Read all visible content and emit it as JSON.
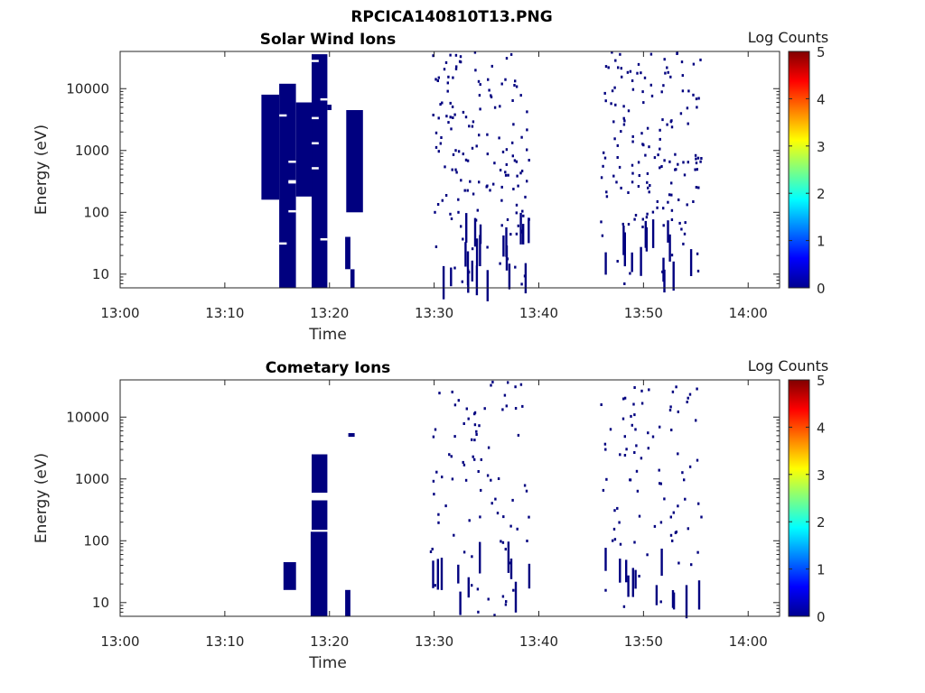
{
  "figure_title": "RPCICA140810T13.PNG",
  "chart_data": [
    {
      "type": "heatmap",
      "title": "Solar Wind Ions",
      "xlabel": "Time",
      "ylabel": "Energy (eV)",
      "y_scale": "log",
      "xlim": [
        "13:00",
        "14:03"
      ],
      "ylim": [
        6,
        40000
      ],
      "x_ticks": [
        "13:00",
        "13:10",
        "13:20",
        "13:30",
        "13:40",
        "13:50",
        "14:00"
      ],
      "y_ticks": [
        "10",
        "100",
        "1000",
        "10000"
      ],
      "colorbar": {
        "label": "Log Counts",
        "min": 0,
        "max": 5,
        "ticks": [
          "0",
          "1",
          "2",
          "3",
          "4",
          "5"
        ]
      },
      "blocks": [
        {
          "t0": "13:15.2",
          "t1": "13:16.8",
          "e0": 6,
          "e1": 12000,
          "log_counts": 0
        },
        {
          "t0": "13:18.3",
          "t1": "13:19.8",
          "e0": 6,
          "e1": 36000,
          "log_counts": 0
        },
        {
          "t0": "13:13.5",
          "t1": "13:15.2",
          "e0": 160,
          "e1": 8000,
          "log_counts": 0
        },
        {
          "t0": "13:16.8",
          "t1": "13:18.3",
          "e0": 180,
          "e1": 6000,
          "log_counts": 0
        },
        {
          "t0": "13:19.8",
          "t1": "13:20.2",
          "e0": 4500,
          "e1": 5500,
          "log_counts": 0
        },
        {
          "t0": "13:21.5",
          "t1": "13:22.0",
          "e0": 12,
          "e1": 40,
          "log_counts": 0
        },
        {
          "t0": "13:21.6",
          "t1": "13:23.2",
          "e0": 100,
          "e1": 4500,
          "log_counts": 0
        },
        {
          "t0": "13:22.0",
          "t1": "13:22.4",
          "e0": 6,
          "e1": 12,
          "log_counts": 0
        }
      ],
      "sparse_intervals": [
        {
          "t0": "13:29.8",
          "t1": "13:39.0",
          "e0": 6,
          "e1": 40000,
          "log_counts": 0
        },
        {
          "t0": "13:45.8",
          "t1": "13:55.5",
          "e0": 6,
          "e1": 40000,
          "log_counts": 0
        }
      ]
    },
    {
      "type": "heatmap",
      "title": "Cometary Ions",
      "xlabel": "Time",
      "ylabel": "Energy (eV)",
      "y_scale": "log",
      "xlim": [
        "13:00",
        "14:03"
      ],
      "ylim": [
        6,
        40000
      ],
      "x_ticks": [
        "13:00",
        "13:10",
        "13:20",
        "13:30",
        "13:40",
        "13:50",
        "14:00"
      ],
      "y_ticks": [
        "10",
        "100",
        "1000",
        "10000"
      ],
      "colorbar": {
        "label": "Log Counts",
        "min": 0,
        "max": 5,
        "ticks": [
          "0",
          "1",
          "2",
          "3",
          "4",
          "5"
        ]
      },
      "blocks": [
        {
          "t0": "13:15.6",
          "t1": "13:16.8",
          "e0": 16,
          "e1": 45,
          "log_counts": 0
        },
        {
          "t0": "13:18.2",
          "t1": "13:19.8",
          "e0": 6,
          "e1": 140,
          "log_counts": 0
        },
        {
          "t0": "13:18.3",
          "t1": "13:19.8",
          "e0": 600,
          "e1": 2500,
          "log_counts": 0
        },
        {
          "t0": "13:18.3",
          "t1": "13:19.8",
          "e0": 150,
          "e1": 450,
          "log_counts": 0
        },
        {
          "t0": "13:21.5",
          "t1": "13:22.0",
          "e0": 6,
          "e1": 16,
          "log_counts": 0
        },
        {
          "t0": "13:21.8",
          "t1": "13:22.4",
          "e0": 4800,
          "e1": 5500,
          "log_counts": 0
        }
      ],
      "sparse_intervals": [
        {
          "t0": "13:29.5",
          "t1": "13:39.0",
          "e0": 6,
          "e1": 40000,
          "log_counts": 0
        },
        {
          "t0": "13:45.8",
          "t1": "13:55.5",
          "e0": 6,
          "e1": 40000,
          "log_counts": 0
        }
      ]
    }
  ]
}
